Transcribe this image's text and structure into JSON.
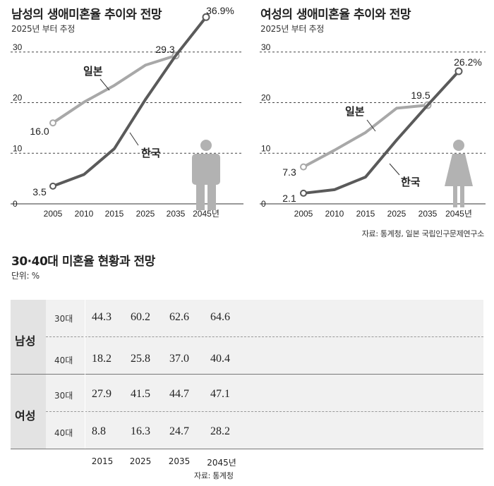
{
  "colors": {
    "japan": "#a8a8a8",
    "korea": "#5a5a5a",
    "grid": "#444444",
    "table_group_bg": "#e3e3e3",
    "table_bg": "#f1f1f1",
    "icon": "#b2b2b2"
  },
  "icons": [
    "male-person-icon",
    "female-person-icon"
  ],
  "chart_data": [
    {
      "type": "line",
      "title": "남성의 생애미혼율 추이와 전망",
      "subtitle": "2025년 부터 추정",
      "categories": [
        "2005",
        "2010",
        "2015",
        "2025",
        "2035",
        "2045년"
      ],
      "y_ticks": [
        "0",
        "10",
        "20",
        "30"
      ],
      "ylim": [
        0,
        40
      ],
      "grid": "dashed at 10, 20, 30",
      "series": [
        {
          "name": "일본",
          "values": [
            16.0,
            20.1,
            23.4,
            27.4,
            29.3,
            null
          ]
        },
        {
          "name": "한국",
          "values": [
            3.5,
            5.8,
            10.9,
            20.6,
            29.3,
            36.9
          ]
        }
      ],
      "annotations": [
        {
          "text": "16.0"
        },
        {
          "text": "3.5"
        },
        {
          "text": "29.3"
        },
        {
          "text": "36.9%"
        }
      ]
    },
    {
      "type": "line",
      "title": "여성의 생애미혼율 추이와 전망",
      "subtitle": "2025년 부터 추정",
      "categories": [
        "2005",
        "2010",
        "2015",
        "2025",
        "2035",
        "2045년"
      ],
      "y_ticks": [
        "0",
        "10",
        "20",
        "30"
      ],
      "ylim": [
        0,
        40
      ],
      "grid": "dashed at 10, 20, 30",
      "series": [
        {
          "name": "일본",
          "values": [
            7.3,
            10.6,
            14.1,
            18.9,
            19.5,
            null
          ]
        },
        {
          "name": "한국",
          "values": [
            2.1,
            2.8,
            5.3,
            12.6,
            19.5,
            26.2
          ]
        }
      ],
      "annotations": [
        {
          "text": "7.3"
        },
        {
          "text": "2.1"
        },
        {
          "text": "19.5"
        },
        {
          "text": "26.2%"
        }
      ],
      "source": "자료: 통계청, 일본 국립인구문제연구소"
    },
    {
      "type": "table",
      "title": "30·40대 미혼율 현황과 전망",
      "unit": "단위: %",
      "columns": [
        "2015",
        "2025",
        "2035",
        "2045년"
      ],
      "groups": [
        {
          "name": "남성",
          "rows": [
            {
              "label": "30대",
              "values": [
                "44.3",
                "60.2",
                "62.6",
                "64.6"
              ]
            },
            {
              "label": "40대",
              "values": [
                "18.2",
                "25.8",
                "37.0",
                "40.4"
              ]
            }
          ]
        },
        {
          "name": "여성",
          "rows": [
            {
              "label": "30대",
              "values": [
                "27.9",
                "41.5",
                "44.7",
                "47.1"
              ]
            },
            {
              "label": "40대",
              "values": [
                "8.8",
                "16.3",
                "24.7",
                "28.2"
              ]
            }
          ]
        }
      ],
      "source": "자료: 통계청"
    }
  ]
}
